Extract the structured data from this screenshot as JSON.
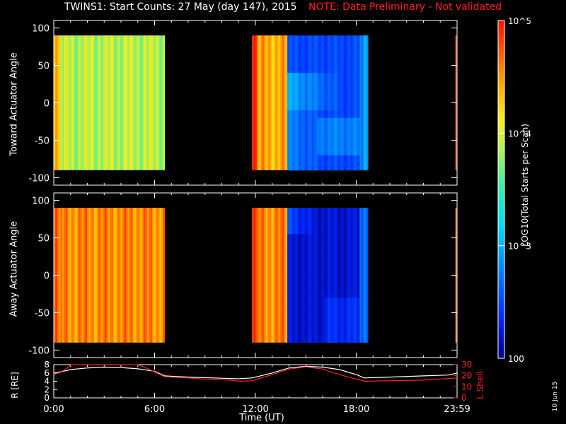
{
  "title": {
    "main": "TWINS1: Start Counts: 27 May (day 147), 2015",
    "note": "NOTE: Data Preliminary - Not validated"
  },
  "colors": {
    "background": "#000000",
    "axes": "#ffffff",
    "note": "#ff2020",
    "lshell": "#ff2020",
    "rdist": "#ffffff"
  },
  "stamp": "10 Jun 15",
  "chart_data": [
    {
      "type": "heatmap",
      "name": "toward",
      "ylabel": "Toward Actuator Angle",
      "ylim": [
        -110,
        110
      ],
      "yticks": [
        100,
        50,
        0,
        -50,
        -100
      ],
      "coverage_hours": [
        [
          0.0,
          6.6
        ],
        [
          11.8,
          18.7
        ],
        [
          23.9,
          24.0
        ]
      ],
      "segments": [
        {
          "x0": 0.0,
          "x1": 0.4,
          "value": 4.3,
          "profile": "flat"
        },
        {
          "x0": 0.4,
          "x1": 6.6,
          "value": 3.9,
          "profile": "flat"
        },
        {
          "x0": 11.8,
          "x1": 12.1,
          "value": 4.85,
          "profile": "flat"
        },
        {
          "x0": 12.1,
          "x1": 13.9,
          "value": 4.4,
          "profile": "flat"
        },
        {
          "x0": 13.9,
          "x1": 18.2,
          "value": 2.5,
          "profile": "toward"
        },
        {
          "x0": 18.2,
          "x1": 18.7,
          "value": 2.8,
          "profile": "flat"
        },
        {
          "x0": 23.9,
          "x1": 24.0,
          "value": 4.8,
          "profile": "flat"
        }
      ]
    },
    {
      "type": "heatmap",
      "name": "away",
      "ylabel": "Away Actuator Angle",
      "ylim": [
        -110,
        110
      ],
      "yticks": [
        100,
        50,
        0,
        -50,
        -100
      ],
      "coverage_hours": [
        [
          0.0,
          6.6
        ],
        [
          11.8,
          18.7
        ],
        [
          23.9,
          24.0
        ]
      ],
      "segments": [
        {
          "x0": 0.0,
          "x1": 0.4,
          "value": 4.6,
          "profile": "flat"
        },
        {
          "x0": 0.4,
          "x1": 6.6,
          "value": 4.55,
          "profile": "flat"
        },
        {
          "x0": 11.8,
          "x1": 12.1,
          "value": 4.7,
          "profile": "flat"
        },
        {
          "x0": 12.1,
          "x1": 13.9,
          "value": 4.55,
          "profile": "flat"
        },
        {
          "x0": 13.9,
          "x1": 18.2,
          "value": 2.2,
          "profile": "away"
        },
        {
          "x0": 18.2,
          "x1": 18.7,
          "value": 2.6,
          "profile": "flat"
        },
        {
          "x0": 23.9,
          "x1": 24.0,
          "value": 4.6,
          "profile": "flat"
        }
      ]
    },
    {
      "type": "line",
      "name": "orbit",
      "ylabel_left": "R [RE]",
      "ylabel_right": "L Shell",
      "left_ylim": [
        0,
        8
      ],
      "left_yticks": [
        0,
        2,
        4,
        6,
        8
      ],
      "right_ylim": [
        0,
        30
      ],
      "right_yticks": [
        0,
        10,
        20,
        30
      ],
      "series": [
        {
          "name": "R",
          "axis": "left",
          "x": [
            0.0,
            1.0,
            2.0,
            3.0,
            4.0,
            5.0,
            6.0,
            6.6,
            8.0,
            9.5,
            11.0,
            11.8,
            13.0,
            14.0,
            15.0,
            16.0,
            17.0,
            18.0,
            18.5,
            20.0,
            22.0,
            23.5,
            24.0
          ],
          "y": [
            5.9,
            6.8,
            7.2,
            7.4,
            7.3,
            7.0,
            6.4,
            5.3,
            5.0,
            4.8,
            4.6,
            4.8,
            6.0,
            7.2,
            7.6,
            7.4,
            6.8,
            5.6,
            4.8,
            5.0,
            5.3,
            5.5,
            6.0
          ]
        },
        {
          "name": "L Shell",
          "axis": "right",
          "x": [
            0.0,
            0.4,
            0.8,
            1.0,
            5.0,
            5.5,
            6.6,
            8.0,
            9.0,
            10.5,
            11.0,
            11.8,
            13.0,
            14.0,
            15.0,
            16.0,
            17.0,
            18.0,
            18.5,
            20.0,
            22.0,
            23.0,
            24.0
          ],
          "y": [
            21,
            23,
            27,
            31,
            31,
            27,
            19,
            18,
            17,
            16,
            15,
            15.5,
            21,
            26,
            28,
            26,
            21,
            17,
            15,
            15.5,
            16,
            17,
            18
          ]
        }
      ]
    }
  ],
  "x_axis": {
    "label": "Time (UT)",
    "ticks": [
      {
        "hour": 0,
        "label": "0:00"
      },
      {
        "hour": 6,
        "label": "6:00"
      },
      {
        "hour": 12,
        "label": "12:00"
      },
      {
        "hour": 18,
        "label": "18:00"
      },
      {
        "hour": 24,
        "label": "23:59"
      }
    ]
  },
  "colorbar": {
    "label": "LOG10(Total Starts per Scan)",
    "scale": "log",
    "range": [
      100,
      100000
    ],
    "ticks": [
      {
        "value": 100000,
        "label": "10^5"
      },
      {
        "value": 10000,
        "label": "10^4"
      },
      {
        "value": 1000,
        "label": "10^3"
      },
      {
        "value": 100,
        "label": "100"
      }
    ]
  }
}
